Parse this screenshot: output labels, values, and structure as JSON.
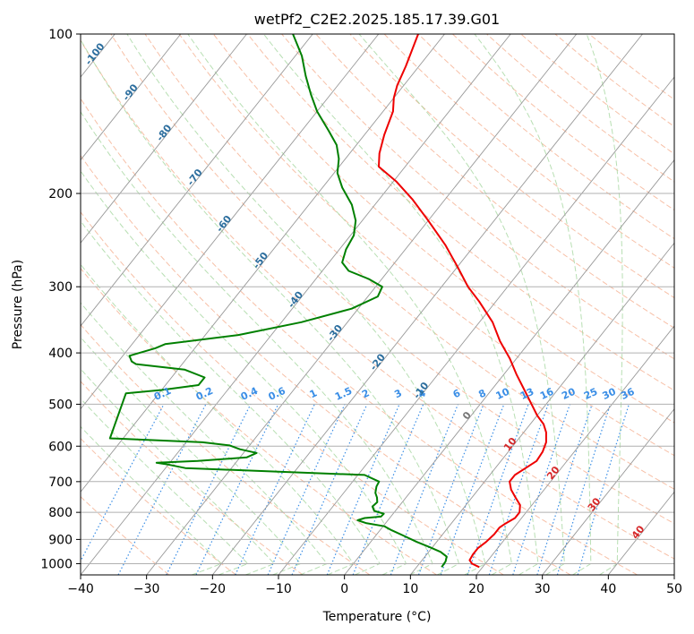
{
  "chart_data": {
    "type": "line",
    "title": "wetPf2_C2E2.2025.185.17.39.G01",
    "xlabel": "Temperature (°C)",
    "ylabel": "Pressure (hPa)",
    "xlim": [
      -40,
      50
    ],
    "ylim": [
      1050,
      100
    ],
    "yscale": "log",
    "skew": "skew-T log-P",
    "grid": true,
    "x_ticks": [
      -40,
      -30,
      -20,
      -10,
      0,
      10,
      20,
      30,
      40,
      50
    ],
    "x_tick_labels": [
      "−40",
      "−30",
      "−20",
      "−10",
      "0",
      "10",
      "20",
      "30",
      "40",
      "50"
    ],
    "y_ticks": [
      100,
      200,
      300,
      400,
      500,
      600,
      700,
      800,
      900,
      1000
    ],
    "y_tick_labels": [
      "100",
      "200",
      "300",
      "400",
      "500",
      "600",
      "700",
      "800",
      "900",
      "1000"
    ],
    "colors": {
      "temperature": "#ee0000",
      "dewpoint": "#008000",
      "isotherm": "#999999",
      "dry_adiabat": "#f4a582",
      "moist_adiabat": "#a6d7a0",
      "mixing_ratio": "#3a8ee6",
      "isotherm_label": "#2c6e9e",
      "warm_label": "#d62728"
    },
    "series": [
      {
        "key": "temperature",
        "points": [
          {
            "p": 1015,
            "t": 19.5
          },
          {
            "p": 1000,
            "t": 18.0
          },
          {
            "p": 985,
            "t": 17.2
          },
          {
            "p": 960,
            "t": 17.0
          },
          {
            "p": 935,
            "t": 17.0
          },
          {
            "p": 910,
            "t": 17.5
          },
          {
            "p": 880,
            "t": 17.8
          },
          {
            "p": 855,
            "t": 17.8
          },
          {
            "p": 840,
            "t": 18.2
          },
          {
            "p": 820,
            "t": 19.0
          },
          {
            "p": 800,
            "t": 19.0
          },
          {
            "p": 775,
            "t": 18.2
          },
          {
            "p": 750,
            "t": 16.6
          },
          {
            "p": 725,
            "t": 15.0
          },
          {
            "p": 700,
            "t": 13.8
          },
          {
            "p": 680,
            "t": 13.8
          },
          {
            "p": 660,
            "t": 14.6
          },
          {
            "p": 640,
            "t": 15.4
          },
          {
            "p": 615,
            "t": 15.2
          },
          {
            "p": 590,
            "t": 14.6
          },
          {
            "p": 565,
            "t": 13.4
          },
          {
            "p": 545,
            "t": 12.0
          },
          {
            "p": 525,
            "t": 10.0
          },
          {
            "p": 500,
            "t": 7.8
          },
          {
            "p": 470,
            "t": 5.0
          },
          {
            "p": 440,
            "t": 2.0
          },
          {
            "p": 410,
            "t": -1.0
          },
          {
            "p": 380,
            "t": -4.6
          },
          {
            "p": 350,
            "t": -8.0
          },
          {
            "p": 320,
            "t": -12.5
          },
          {
            "p": 300,
            "t": -16.0
          },
          {
            "p": 275,
            "t": -20.0
          },
          {
            "p": 250,
            "t": -24.5
          },
          {
            "p": 225,
            "t": -30.0
          },
          {
            "p": 205,
            "t": -35.0
          },
          {
            "p": 190,
            "t": -39.5
          },
          {
            "p": 178,
            "t": -44.0
          },
          {
            "p": 168,
            "t": -45.5
          },
          {
            "p": 155,
            "t": -47.0
          },
          {
            "p": 140,
            "t": -48.5
          },
          {
            "p": 132,
            "t": -50.0
          },
          {
            "p": 125,
            "t": -51.0
          },
          {
            "p": 115,
            "t": -52.0
          },
          {
            "p": 100,
            "t": -54.0
          }
        ]
      },
      {
        "key": "dewpoint",
        "points": [
          {
            "p": 1015,
            "t": 13.8
          },
          {
            "p": 990,
            "t": 13.7
          },
          {
            "p": 970,
            "t": 13.3
          },
          {
            "p": 950,
            "t": 11.8
          },
          {
            "p": 930,
            "t": 9.5
          },
          {
            "p": 910,
            "t": 7.0
          },
          {
            "p": 885,
            "t": 4.2
          },
          {
            "p": 865,
            "t": 1.8
          },
          {
            "p": 850,
            "t": 0.2
          },
          {
            "p": 838,
            "t": -3.0
          },
          {
            "p": 828,
            "t": -4.6
          },
          {
            "p": 820,
            "t": -3.8
          },
          {
            "p": 815,
            "t": -1.5
          },
          {
            "p": 805,
            "t": -1.4
          },
          {
            "p": 795,
            "t": -3.2
          },
          {
            "p": 780,
            "t": -4.0
          },
          {
            "p": 765,
            "t": -3.8
          },
          {
            "p": 750,
            "t": -4.4
          },
          {
            "p": 735,
            "t": -5.2
          },
          {
            "p": 715,
            "t": -5.8
          },
          {
            "p": 700,
            "t": -6.0
          },
          {
            "p": 680,
            "t": -9.0
          },
          {
            "p": 668,
            "t": -26.0
          },
          {
            "p": 660,
            "t": -37.0
          },
          {
            "p": 650,
            "t": -40.0
          },
          {
            "p": 645,
            "t": -42.0
          },
          {
            "p": 640,
            "t": -36.0
          },
          {
            "p": 630,
            "t": -29.0
          },
          {
            "p": 618,
            "t": -28.0
          },
          {
            "p": 608,
            "t": -31.0
          },
          {
            "p": 598,
            "t": -33.0
          },
          {
            "p": 590,
            "t": -37.5
          },
          {
            "p": 580,
            "t": -52.0
          },
          {
            "p": 477,
            "t": -55.0
          },
          {
            "p": 470,
            "t": -50.0
          },
          {
            "p": 460,
            "t": -45.0
          },
          {
            "p": 445,
            "t": -45.0
          },
          {
            "p": 430,
            "t": -49.0
          },
          {
            "p": 420,
            "t": -57.0
          },
          {
            "p": 415,
            "t": -58.0
          },
          {
            "p": 405,
            "t": -59.0
          },
          {
            "p": 392,
            "t": -56.0
          },
          {
            "p": 385,
            "t": -55.0
          },
          {
            "p": 370,
            "t": -45.0
          },
          {
            "p": 350,
            "t": -37.0
          },
          {
            "p": 330,
            "t": -31.0
          },
          {
            "p": 313,
            "t": -28.5
          },
          {
            "p": 300,
            "t": -29.0
          },
          {
            "p": 290,
            "t": -32.0
          },
          {
            "p": 280,
            "t": -36.0
          },
          {
            "p": 270,
            "t": -38.0
          },
          {
            "p": 255,
            "t": -39.0
          },
          {
            "p": 240,
            "t": -39.5
          },
          {
            "p": 225,
            "t": -41.0
          },
          {
            "p": 210,
            "t": -43.5
          },
          {
            "p": 195,
            "t": -47.0
          },
          {
            "p": 183,
            "t": -49.5
          },
          {
            "p": 172,
            "t": -51.0
          },
          {
            "p": 162,
            "t": -53.0
          },
          {
            "p": 152,
            "t": -56.0
          },
          {
            "p": 140,
            "t": -60.0
          },
          {
            "p": 130,
            "t": -63.0
          },
          {
            "p": 120,
            "t": -66.0
          },
          {
            "p": 110,
            "t": -69.0
          },
          {
            "p": 100,
            "t": -73.0
          }
        ]
      }
    ],
    "isotherm_labels": [
      {
        "text": "-100",
        "t": -100,
        "p": 110
      },
      {
        "text": "-90",
        "t": -90,
        "p": 130
      },
      {
        "text": "-80",
        "t": -80,
        "p": 155
      },
      {
        "text": "-70",
        "t": -70,
        "p": 188
      },
      {
        "text": "-60",
        "t": -60,
        "p": 230
      },
      {
        "text": "-50",
        "t": -50,
        "p": 270
      },
      {
        "text": "-40",
        "t": -40,
        "p": 320
      },
      {
        "text": "-30",
        "t": -30,
        "p": 370
      },
      {
        "text": "-20",
        "t": -20,
        "p": 420
      },
      {
        "text": "-10",
        "t": -10,
        "p": 475
      },
      {
        "text": "0",
        "t": 0,
        "p": 530
      },
      {
        "text": "10",
        "t": 10,
        "p": 600
      },
      {
        "text": "20",
        "t": 20,
        "p": 680
      },
      {
        "text": "30",
        "t": 30,
        "p": 780
      },
      {
        "text": "40",
        "t": 40,
        "p": 880
      }
    ],
    "mixing_ratio_labels": [
      "0.1",
      "0.2",
      "0.4",
      "0.6",
      "1",
      "1.5",
      "2",
      "3",
      "4",
      "6",
      "8",
      "10",
      "13",
      "16",
      "20",
      "25",
      "30",
      "36"
    ],
    "mixing_ratio_values": [
      0.1,
      0.2,
      0.4,
      0.6,
      1,
      1.5,
      2,
      3,
      4,
      6,
      8,
      10,
      13,
      16,
      20,
      25,
      30,
      36
    ]
  }
}
